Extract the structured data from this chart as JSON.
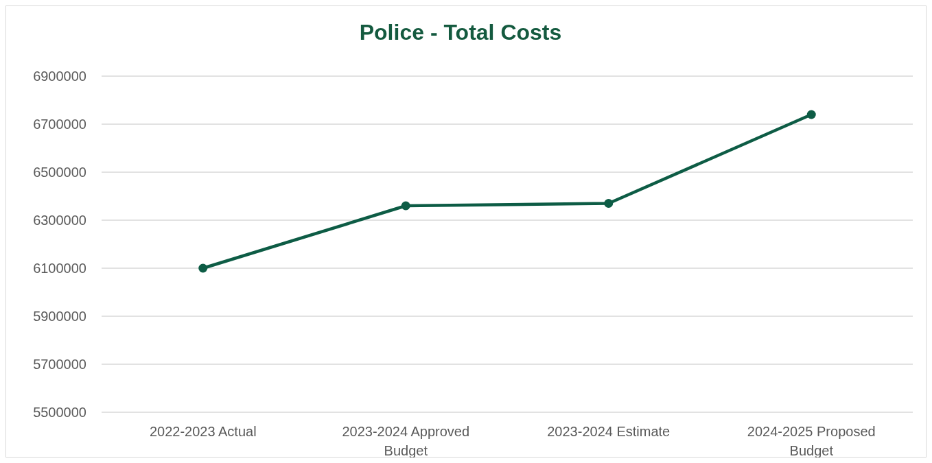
{
  "chart_data": {
    "type": "line",
    "title": "Police - Total Costs",
    "categories": [
      "2022-2023 Actual",
      "2023-2024 Approved Budget",
      "2023-2024 Estimate",
      "2024-2025 Proposed Budget"
    ],
    "series": [
      {
        "color": "#0d5c45",
        "values": [
          6100000,
          6360000,
          6370000,
          6740000
        ]
      }
    ],
    "ylim": [
      5500000,
      6900000
    ],
    "yticks": [
      5500000,
      5700000,
      5900000,
      6100000,
      6300000,
      6500000,
      6700000,
      6900000
    ],
    "grid": "y",
    "marker": "circle",
    "line_style": "solid"
  }
}
